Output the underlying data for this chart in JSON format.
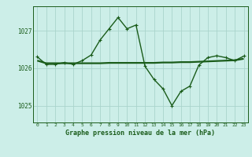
{
  "title": "Graphe pression niveau de la mer (hPa)",
  "background_color": "#cceee8",
  "grid_color": "#aad4cc",
  "line_color": "#1a5c1a",
  "x_values": [
    0,
    1,
    2,
    3,
    4,
    5,
    6,
    7,
    8,
    9,
    10,
    11,
    12,
    13,
    14,
    15,
    16,
    17,
    18,
    19,
    20,
    21,
    22,
    23
  ],
  "y_main": [
    1026.3,
    1026.1,
    1026.1,
    1026.15,
    1026.1,
    1026.2,
    1026.35,
    1026.75,
    1027.05,
    1027.35,
    1027.05,
    1027.15,
    1026.05,
    1025.7,
    1025.45,
    1025.0,
    1025.38,
    1025.52,
    1026.08,
    1026.28,
    1026.33,
    1026.28,
    1026.2,
    1026.32
  ],
  "y_flat": [
    1026.2,
    1026.13,
    1026.13,
    1026.13,
    1026.13,
    1026.13,
    1026.13,
    1026.13,
    1026.14,
    1026.14,
    1026.14,
    1026.14,
    1026.14,
    1026.14,
    1026.15,
    1026.15,
    1026.16,
    1026.16,
    1026.17,
    1026.18,
    1026.19,
    1026.2,
    1026.21,
    1026.25
  ],
  "ylim": [
    1024.55,
    1027.65
  ],
  "yticks": [
    1025,
    1026,
    1027
  ],
  "xticks": [
    0,
    1,
    2,
    3,
    4,
    5,
    6,
    7,
    8,
    9,
    10,
    11,
    12,
    13,
    14,
    15,
    16,
    17,
    18,
    19,
    20,
    21,
    22,
    23
  ]
}
